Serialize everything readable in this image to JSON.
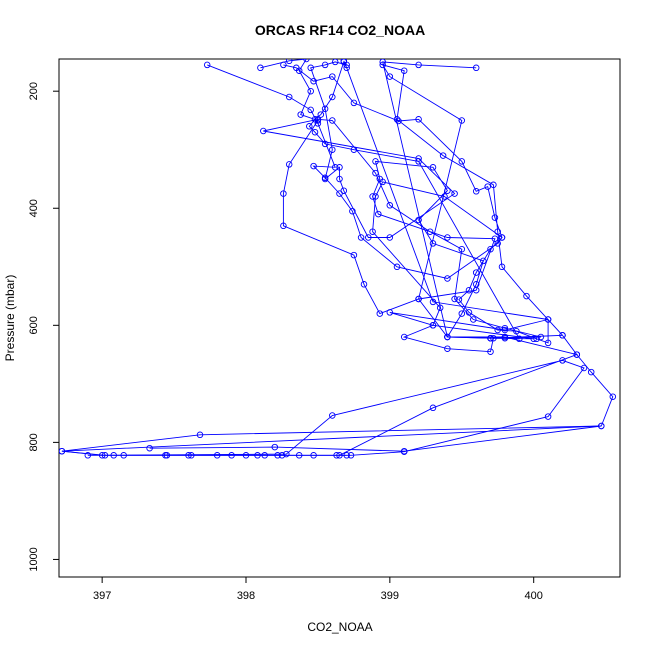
{
  "chart_data": {
    "type": "line",
    "title": "ORCAS RF14 CO2_NOAA",
    "xlabel": "CO2_NOAA",
    "ylabel": "Pressure (mbar)",
    "xlim": [
      396.7,
      400.6
    ],
    "ylim": [
      1030,
      145
    ],
    "xticks": [
      397,
      398,
      399,
      400
    ],
    "yticks": [
      200,
      400,
      600,
      800,
      1000
    ],
    "y_inverted": true,
    "grid": false,
    "series_color": "#0000ff",
    "series": [
      {
        "points": [
          [
            398.26,
            155
          ],
          [
            398.35,
            160
          ],
          [
            398.47,
            183
          ],
          [
            398.6,
            175
          ],
          [
            398.75,
            220
          ],
          [
            399.06,
            251
          ],
          [
            399.2,
            248
          ],
          [
            399.5,
            320
          ],
          [
            399.6,
            371
          ],
          [
            399.68,
            363
          ],
          [
            399.73,
            416
          ],
          [
            399.78,
            450
          ],
          [
            399.7,
            470
          ],
          [
            399.6,
            510
          ],
          [
            399.55,
            540
          ],
          [
            399.48,
            556
          ],
          [
            399.55,
            578
          ],
          [
            399.75,
            608
          ],
          [
            399.88,
            610
          ],
          [
            400.02,
            623
          ],
          [
            400.1,
            630
          ],
          [
            400.1,
            590
          ],
          [
            400.2,
            617
          ],
          [
            400.3,
            650
          ],
          [
            400.4,
            680
          ],
          [
            400.55,
            722
          ],
          [
            400.47,
            772
          ],
          [
            396.72,
            815
          ],
          [
            397.02,
            822
          ],
          [
            397.15,
            822
          ],
          [
            397.44,
            822
          ],
          [
            397.62,
            822
          ],
          [
            397.8,
            822
          ],
          [
            398.0,
            822
          ],
          [
            398.13,
            822
          ],
          [
            398.22,
            822
          ],
          [
            398.37,
            822
          ],
          [
            398.47,
            822
          ],
          [
            398.63,
            822
          ],
          [
            398.73,
            822
          ],
          [
            399.1,
            816
          ],
          [
            400.1,
            756
          ],
          [
            400.35,
            673
          ],
          [
            400.2,
            660
          ],
          [
            398.6,
            754
          ],
          [
            398.28,
            820
          ],
          [
            396.9,
            822
          ],
          [
            397.08,
            822
          ],
          [
            397.45,
            822
          ],
          [
            397.6,
            822
          ],
          [
            397.9,
            822
          ],
          [
            398.08,
            822
          ],
          [
            398.25,
            822
          ],
          [
            398.65,
            822
          ],
          [
            399.3,
            741
          ],
          [
            400.3,
            650
          ],
          [
            399.8,
            620
          ],
          [
            399.4,
            620
          ],
          [
            399.2,
            555
          ],
          [
            399.5,
            250
          ],
          [
            399.0,
            175
          ],
          [
            398.95,
            155
          ],
          [
            399.1,
            165
          ],
          [
            399.05,
            248
          ],
          [
            399.37,
            310
          ],
          [
            399.72,
            360
          ],
          [
            399.75,
            440
          ],
          [
            399.78,
            500
          ],
          [
            399.95,
            550
          ],
          [
            400.2,
            617
          ],
          [
            399.7,
            622
          ],
          [
            399.4,
            620
          ],
          [
            398.95,
            150
          ],
          [
            399.2,
            155
          ],
          [
            399.6,
            160
          ]
        ]
      },
      {
        "points": [
          [
            398.1,
            160
          ],
          [
            398.3,
            148
          ],
          [
            398.42,
            145
          ],
          [
            398.37,
            165
          ],
          [
            398.45,
            200
          ],
          [
            398.38,
            240
          ],
          [
            398.5,
            250
          ],
          [
            398.3,
            325
          ],
          [
            398.26,
            375
          ],
          [
            398.26,
            430
          ],
          [
            398.75,
            480
          ],
          [
            398.82,
            530
          ],
          [
            398.93,
            580
          ],
          [
            399.2,
            555
          ],
          [
            399.6,
            540
          ],
          [
            399.73,
            452
          ],
          [
            399.4,
            450
          ],
          [
            398.92,
            410
          ],
          [
            398.88,
            380
          ],
          [
            398.93,
            350
          ],
          [
            398.9,
            320
          ],
          [
            399.3,
            330
          ],
          [
            399.4,
            370
          ],
          [
            399.2,
            420
          ],
          [
            399.3,
            460
          ],
          [
            399.65,
            490
          ],
          [
            399.6,
            530
          ],
          [
            399.5,
            580
          ],
          [
            399.4,
            620
          ],
          [
            399.7,
            622
          ],
          [
            399.8,
            622
          ],
          [
            399.9,
            623
          ],
          [
            399.2,
            320
          ],
          [
            398.75,
            300
          ],
          [
            398.55,
            290
          ],
          [
            398.48,
            270
          ],
          [
            398.44,
            260
          ],
          [
            398.48,
            248
          ],
          [
            398.52,
            240
          ],
          [
            398.6,
            210
          ],
          [
            398.68,
            150
          ],
          [
            398.7,
            155
          ],
          [
            398.62,
            150
          ],
          [
            398.55,
            155
          ],
          [
            398.45,
            160
          ],
          [
            398.55,
            230
          ],
          [
            398.6,
            300
          ],
          [
            398.55,
            350
          ],
          [
            398.65,
            330
          ],
          [
            398.65,
            350
          ],
          [
            398.68,
            370
          ],
          [
            398.85,
            450
          ],
          [
            399.0,
            450
          ],
          [
            399.45,
            375
          ],
          [
            399.2,
            315
          ],
          [
            398.12,
            268
          ],
          [
            398.5,
            248
          ],
          [
            398.6,
            250
          ],
          [
            398.9,
            340
          ],
          [
            399.0,
            395
          ],
          [
            399.28,
            440
          ],
          [
            399.5,
            470
          ],
          [
            399.45,
            555
          ],
          [
            399.58,
            590
          ],
          [
            399.8,
            605
          ],
          [
            400.05,
            620
          ],
          [
            399.7,
            622
          ]
        ]
      },
      {
        "points": [
          [
            397.73,
            155
          ],
          [
            398.3,
            210
          ],
          [
            398.45,
            232
          ],
          [
            398.5,
            255
          ],
          [
            398.62,
            330
          ],
          [
            398.47,
            328
          ],
          [
            398.55,
            348
          ],
          [
            398.65,
            375
          ],
          [
            398.74,
            405
          ],
          [
            398.8,
            450
          ],
          [
            399.05,
            500
          ],
          [
            399.4,
            520
          ],
          [
            399.75,
            460
          ],
          [
            399.78,
            450
          ],
          [
            399.38,
            380
          ],
          [
            398.95,
            355
          ],
          [
            398.9,
            380
          ],
          [
            398.88,
            440
          ],
          [
            399.35,
            570
          ],
          [
            399.3,
            600
          ],
          [
            399.1,
            620
          ],
          [
            399.4,
            640
          ],
          [
            399.7,
            645
          ],
          [
            399.72,
            622
          ],
          [
            400.0,
            623
          ],
          [
            399.3,
            600
          ],
          [
            399.0,
            578
          ],
          [
            399.8,
            608
          ],
          [
            400.1,
            590
          ],
          [
            399.3,
            560
          ],
          [
            398.7,
            160
          ],
          [
            398.68,
            148
          ]
        ]
      },
      {
        "points": [
          [
            397.33,
            810
          ],
          [
            398.2,
            808
          ],
          [
            399.1,
            815
          ],
          [
            400.47,
            772
          ],
          [
            397.68,
            787
          ],
          [
            396.72,
            815
          ],
          [
            397.0,
            822
          ],
          [
            398.7,
            822
          ]
        ]
      }
    ]
  }
}
